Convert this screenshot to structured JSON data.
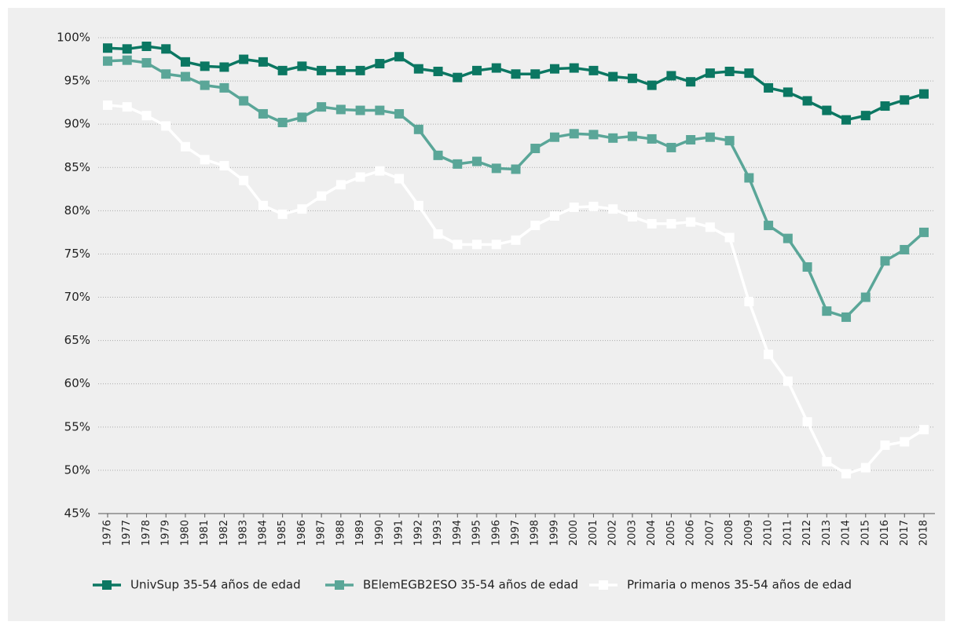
{
  "chart_data": {
    "type": "line",
    "categories": [
      "1976",
      "1977",
      "1978",
      "1979",
      "1980",
      "1981",
      "1982",
      "1983",
      "1984",
      "1985",
      "1986",
      "1987",
      "1988",
      "1989",
      "1990",
      "1991",
      "1992",
      "1993",
      "1994",
      "1995",
      "1996",
      "1997",
      "1998",
      "1999",
      "2000",
      "2001",
      "2002",
      "2003",
      "2004",
      "2005",
      "2006",
      "2007",
      "2008",
      "2009",
      "2010",
      "2011",
      "2012",
      "2013",
      "2014",
      "2015",
      "2016",
      "2017",
      "2018"
    ],
    "series": [
      {
        "name": "UnivSup 35-54 años de edad",
        "color": "#0b7762",
        "values": [
          98.8,
          98.7,
          99.0,
          98.7,
          97.2,
          96.7,
          96.6,
          97.5,
          97.2,
          96.2,
          96.7,
          96.2,
          96.2,
          96.2,
          97.0,
          97.8,
          96.4,
          96.1,
          95.4,
          96.2,
          96.5,
          95.8,
          95.8,
          96.4,
          96.5,
          96.2,
          95.5,
          95.3,
          94.5,
          95.6,
          94.9,
          95.9,
          96.1,
          95.9,
          94.2,
          93.7,
          92.7,
          91.6,
          90.5,
          91.0,
          92.1,
          92.8,
          93.5
        ]
      },
      {
        "name": "BElemEGB2ESO 35-54 años de edad",
        "color": "#5aa698",
        "values": [
          97.3,
          97.4,
          97.1,
          95.8,
          95.5,
          94.5,
          94.2,
          92.7,
          91.2,
          90.2,
          90.8,
          92.0,
          91.7,
          91.6,
          91.6,
          91.2,
          89.4,
          86.4,
          85.4,
          85.7,
          84.9,
          84.8,
          87.2,
          88.5,
          88.9,
          88.8,
          88.4,
          88.6,
          88.3,
          87.3,
          88.2,
          88.5,
          88.1,
          83.8,
          78.3,
          76.8,
          73.5,
          68.4,
          67.7,
          70.0,
          74.2,
          75.5,
          77.5
        ]
      },
      {
        "name": "Primaria o menos 35-54 años de edad",
        "color": "#ffffff",
        "values": [
          92.2,
          92.0,
          91.0,
          89.8,
          87.4,
          85.9,
          85.2,
          83.5,
          80.6,
          79.6,
          80.2,
          81.7,
          83.0,
          83.9,
          84.6,
          83.7,
          80.6,
          77.3,
          76.1,
          76.1,
          76.1,
          76.6,
          78.3,
          79.4,
          80.4,
          80.5,
          80.2,
          79.3,
          78.5,
          78.5,
          78.7,
          78.1,
          76.9,
          69.5,
          63.4,
          60.3,
          55.6,
          51.0,
          49.6,
          50.3,
          52.9,
          53.3,
          54.7
        ]
      }
    ],
    "ylim": [
      45,
      100
    ],
    "yticks": [
      {
        "value": 45,
        "label": "45%"
      },
      {
        "value": 50,
        "label": "50%"
      },
      {
        "value": 55,
        "label": "55%"
      },
      {
        "value": 60,
        "label": "60%"
      },
      {
        "value": 65,
        "label": "65%"
      },
      {
        "value": 70,
        "label": "70%"
      },
      {
        "value": 75,
        "label": "75%"
      },
      {
        "value": 80,
        "label": "80%"
      },
      {
        "value": 85,
        "label": "85%"
      },
      {
        "value": 90,
        "label": "90%"
      },
      {
        "value": 95,
        "label": "95%"
      },
      {
        "value": 100,
        "label": "100%"
      }
    ],
    "grid": true,
    "legend": "bottom"
  }
}
